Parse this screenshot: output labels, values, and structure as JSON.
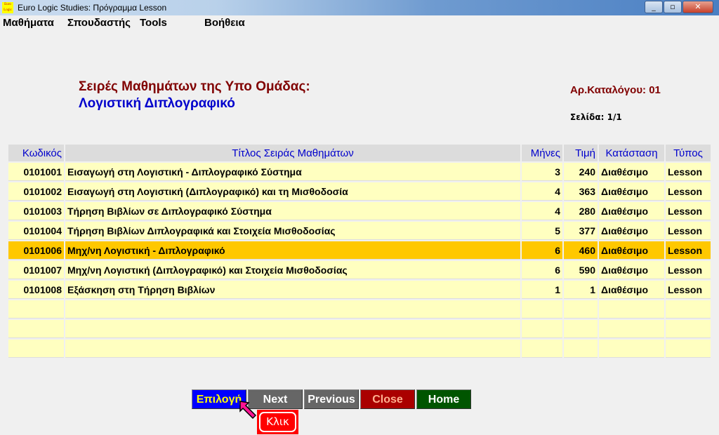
{
  "window": {
    "title": "Euro Logic Studies: Πρόγραμμα Lesson",
    "logo_text": "Euro Logic"
  },
  "menu": [
    "Μαθήματα",
    "Σπουδαστής",
    "Tools",
    "Βοήθεια"
  ],
  "header": {
    "title": "Σειρές Μαθημάτων της Υπο Ομάδας:",
    "subtitle": "Λογιστική Διπλογραφικό",
    "catalog": "Αρ.Καταλόγου: 01",
    "page": "Σελίδα: 1/1"
  },
  "table": {
    "columns": [
      "Κωδικός",
      "Τίτλος Σειράς Μαθημάτων",
      "Μήνες",
      "Τιμή",
      "Κατάσταση",
      "Τύπος"
    ],
    "rows": [
      [
        "0101001",
        "Εισαγωγή στη Λογιστική - Διπλογραφικό Σύστημα",
        "3",
        "240",
        "Διαθέσιμο",
        "Lesson"
      ],
      [
        "0101002",
        "Εισαγωγή στη Λογιστική (Διπλογραφικό) και τη Μισθοδοσία",
        "4",
        "363",
        "Διαθέσιμο",
        "Lesson"
      ],
      [
        "0101003",
        "Τήρηση Βιβλίων σε Διπλογραφικό Σύστημα",
        "4",
        "280",
        "Διαθέσιμο",
        "Lesson"
      ],
      [
        "0101004",
        "Τήρηση Βιβλίων Διπλογραφικά και Στοιχεία Μισθοδοσίας",
        "5",
        "377",
        "Διαθέσιμο",
        "Lesson"
      ],
      [
        "0101006",
        "Μηχ/νη Λογιστική - Διπλογραφικό",
        "6",
        "460",
        "Διαθέσιμο",
        "Lesson"
      ],
      [
        "0101007",
        "Μηχ/νη Λογιστική (Διπλογραφικό) και Στοιχεία Μισθοδοσίας",
        "6",
        "590",
        "Διαθέσιμο",
        "Lesson"
      ],
      [
        "0101008",
        "Εξάσκηση στη Τήρηση Βιβλίων",
        "1",
        "1",
        "Διαθέσιμο",
        "Lesson"
      ]
    ],
    "empty_rows": 3,
    "selected_row": 4
  },
  "buttons": [
    {
      "label": "Επιλογή",
      "bg": "#0000ff",
      "fg": "#ffff00"
    },
    {
      "label": "Next",
      "bg": "#666666",
      "fg": "#ffffff"
    },
    {
      "label": "Previous",
      "bg": "#666666",
      "fg": "#ffffff"
    },
    {
      "label": "Close",
      "bg": "#aa0000",
      "fg": "#ffb090"
    },
    {
      "label": "Home",
      "bg": "#005500",
      "fg": "#ffffff"
    }
  ],
  "hint": "Κλικ"
}
